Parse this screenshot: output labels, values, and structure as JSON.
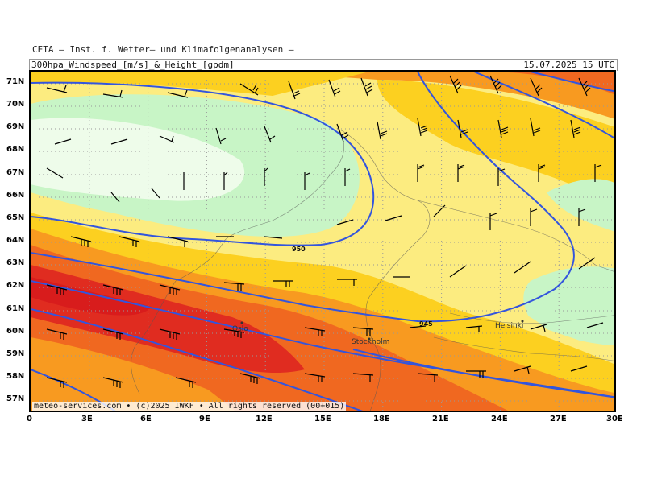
{
  "header": {
    "source": "CETA — Inst. f. Wetter— und Klimafolgenanalysen —",
    "title": "300hpa_Windspeed_[m/s]_&_Height_[gpdm]",
    "valid_time": "15.07.2025 15 UTC"
  },
  "footer": "meteo-services.com • (c)2025 IWKF • All rights reserved (00+015)",
  "axes": {
    "lat_labels": [
      "71N",
      "70N",
      "69N",
      "68N",
      "67N",
      "66N",
      "65N",
      "64N",
      "63N",
      "62N",
      "61N",
      "60N",
      "59N",
      "58N",
      "57N"
    ],
    "lon_labels": [
      "0",
      "3E",
      "6E",
      "9E",
      "12E",
      "15E",
      "18E",
      "21E",
      "24E",
      "27E",
      "30E"
    ]
  },
  "cities": [
    "Oslo",
    "Stockholm",
    "Helsinki"
  ],
  "contour_labels": [
    "950",
    "945"
  ],
  "colors": {
    "ws_very_light": "#eefcea",
    "ws_light": "#c8f5c6",
    "ws_pale_yellow": "#fcec80",
    "ws_yellow": "#fcd020",
    "ws_orange": "#f89a20",
    "ws_dark_orange": "#f06820",
    "ws_red": "#e02c20",
    "contour": "#3355dd",
    "grid": "#999999"
  }
}
